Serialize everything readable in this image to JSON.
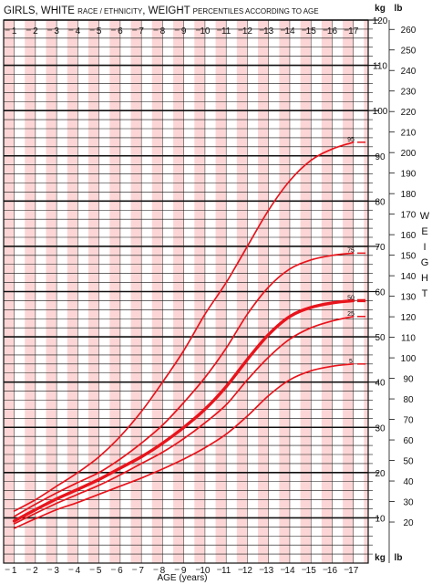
{
  "chart_data": {
    "type": "line",
    "title": {
      "part1": "GIRLS, WHITE ",
      "part2": "RACE / ETHNICITY",
      "part3": ", WEIGHT ",
      "part4": "PERCENTILES ACCORDING TO AGE"
    },
    "xlabel": "AGE (years)",
    "ylabel": "WEIGHT",
    "kg_unit": "kg",
    "lb_unit": "lb",
    "xlim": [
      0.5,
      17.7
    ],
    "ylim": [
      0,
      120
    ],
    "x_ticks": [
      "1",
      "2",
      "3",
      "4",
      "5",
      "6",
      "7",
      "8",
      "9",
      "10",
      "11",
      "12",
      "13",
      "14",
      "15",
      "16",
      "17"
    ],
    "kg_ticks": [
      10,
      20,
      30,
      40,
      50,
      60,
      70,
      80,
      90,
      100,
      110,
      120
    ],
    "lb_ticks": [
      20,
      30,
      40,
      50,
      60,
      70,
      80,
      90,
      100,
      110,
      120,
      130,
      140,
      150,
      160,
      170,
      180,
      190,
      200,
      210,
      220,
      230,
      240,
      250,
      260
    ],
    "colors": {
      "line": "#e8141c",
      "grid": "#111111",
      "alt_band": "#fcd6d6"
    },
    "series": [
      {
        "name": "5",
        "x": [
          1,
          2,
          3,
          4,
          5,
          6,
          7,
          8,
          9,
          10,
          11,
          12,
          13,
          14,
          15,
          16,
          17
        ],
        "values": [
          7.7,
          9.8,
          11.8,
          13.4,
          15.2,
          17.0,
          18.8,
          20.8,
          23.0,
          25.5,
          28.5,
          32.5,
          37.0,
          40.5,
          42.5,
          43.5,
          44.0
        ]
      },
      {
        "name": "25",
        "x": [
          1,
          2,
          3,
          4,
          5,
          6,
          7,
          8,
          9,
          10,
          11,
          12,
          13,
          14,
          15,
          16,
          17
        ],
        "values": [
          8.7,
          11.0,
          13.2,
          15.2,
          17.2,
          19.5,
          22.0,
          24.5,
          27.5,
          31.0,
          35.0,
          40.5,
          45.5,
          49.5,
          52.0,
          53.5,
          54.5
        ]
      },
      {
        "name": "50",
        "x": [
          1,
          2,
          3,
          4,
          5,
          6,
          7,
          8,
          9,
          10,
          11,
          12,
          13,
          14,
          15,
          16,
          17
        ],
        "values": [
          9.3,
          11.8,
          14.2,
          16.3,
          18.5,
          21.0,
          23.5,
          26.5,
          30.0,
          34.0,
          39.0,
          45.0,
          50.5,
          54.5,
          56.5,
          57.5,
          58.0
        ]
      },
      {
        "name": "75",
        "x": [
          1,
          2,
          3,
          4,
          5,
          6,
          7,
          8,
          9,
          10,
          11,
          12,
          13,
          14,
          15,
          16,
          17
        ],
        "values": [
          10.3,
          13.0,
          15.5,
          17.8,
          20.0,
          23.0,
          26.5,
          30.5,
          35.5,
          41.0,
          47.5,
          55.0,
          61.0,
          65.0,
          67.0,
          68.0,
          68.5
        ]
      },
      {
        "name": "95",
        "x": [
          1,
          2,
          3,
          4,
          5,
          6,
          7,
          8,
          9,
          10,
          11,
          12,
          13,
          14,
          15,
          16,
          17
        ],
        "values": [
          11.5,
          14.0,
          17.0,
          20.0,
          23.5,
          28.0,
          33.5,
          40.0,
          47.0,
          55.0,
          62.0,
          70.0,
          78.0,
          84.5,
          89.0,
          91.5,
          93.0
        ]
      }
    ]
  }
}
